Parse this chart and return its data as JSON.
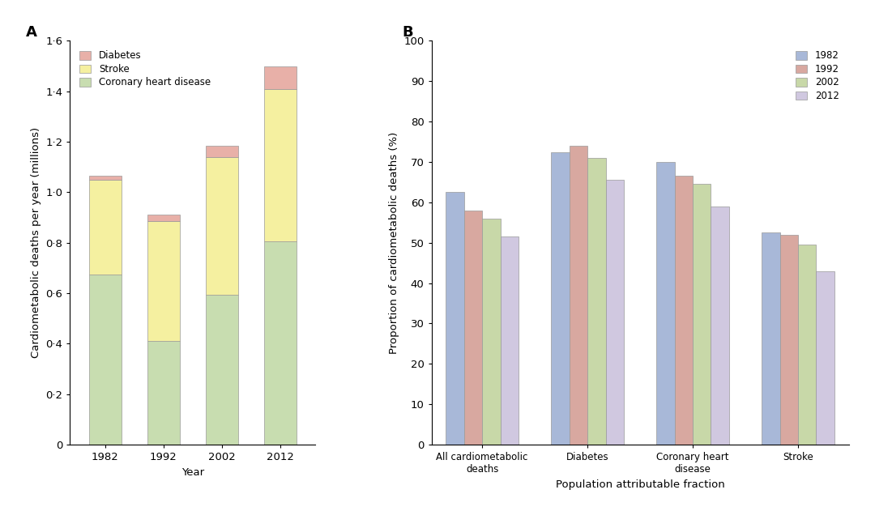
{
  "panel_a": {
    "years": [
      "1982",
      "1992",
      "2002",
      "2012"
    ],
    "coronary": [
      0.675,
      0.41,
      0.595,
      0.805
    ],
    "stroke": [
      0.375,
      0.475,
      0.545,
      0.605
    ],
    "diabetes": [
      0.015,
      0.025,
      0.045,
      0.09
    ],
    "ylabel": "Cardiometabolic deaths per year (millions)",
    "xlabel": "Year",
    "ylim": [
      0,
      1.6
    ],
    "yticks": [
      0,
      0.2,
      0.4,
      0.6,
      0.8,
      1.0,
      1.2,
      1.4,
      1.6
    ],
    "ytick_labels": [
      "0",
      "0·2",
      "0·4",
      "0·6",
      "0·8",
      "1·0",
      "1·2",
      "1·4",
      "1·6"
    ],
    "color_coronary": "#c8ddb0",
    "color_stroke": "#f5f0a0",
    "color_diabetes": "#e8b0a8",
    "title": "A"
  },
  "panel_b": {
    "categories": [
      "All cardiometabolic\ndeaths",
      "Diabetes",
      "Coronary heart\ndisease",
      "Stroke"
    ],
    "years": [
      "1982",
      "1992",
      "2002",
      "2012"
    ],
    "values": {
      "All cardiometabolic\ndeaths": [
        62.5,
        58.0,
        56.0,
        51.5
      ],
      "Diabetes": [
        72.5,
        74.0,
        71.0,
        65.5
      ],
      "Coronary heart\ndisease": [
        70.0,
        66.5,
        64.5,
        59.0
      ],
      "Stroke": [
        52.5,
        52.0,
        49.5,
        43.0
      ]
    },
    "ylabel": "Proportion of cardiometabolic deaths (%)",
    "xlabel": "Population attributable fraction",
    "ylim": [
      0,
      100
    ],
    "yticks": [
      0,
      10,
      20,
      30,
      40,
      50,
      60,
      70,
      80,
      90,
      100
    ],
    "color_1982": "#a8b8d8",
    "color_1992": "#d8a8a0",
    "color_2002": "#c8d8a8",
    "color_2012": "#d0c8e0",
    "title": "B"
  }
}
